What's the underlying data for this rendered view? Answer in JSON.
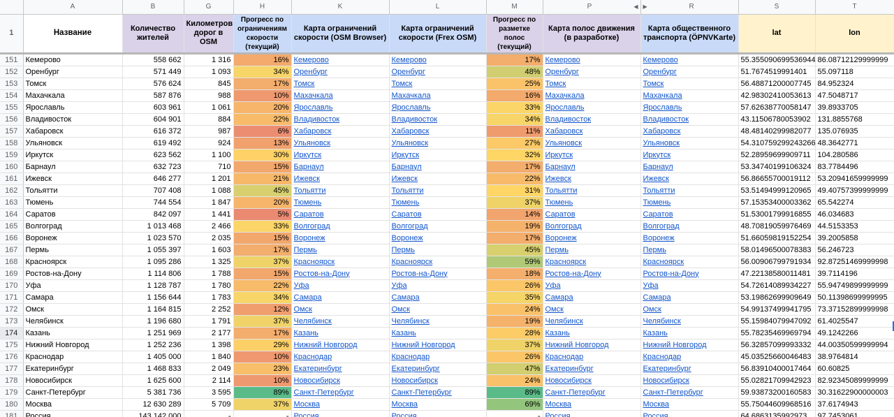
{
  "columns": {
    "letters": [
      "A",
      "B",
      "G",
      "H",
      "K",
      "L",
      "M",
      "P",
      "R",
      "S",
      "T"
    ],
    "header_row_number": "1",
    "headers": [
      "Название",
      "Количество жителей",
      "Километров дорог в OSM",
      "Прогресс по ограничениям скорости (текущий)",
      "Карта ограничений скорости (OSM Browser)",
      "Карта ограничений скорости (Frex OSM)",
      "Прогресс по разметке полос (текущий)",
      "Карта полос движения (в разработке)",
      "Карта общественного транспорта (ÖPNVKarte)",
      "lat",
      "lon"
    ]
  },
  "colors": {
    "header_purple": "#d9d2e9",
    "header_blue": "#c9daf8",
    "header_yellow": "#fff2cc",
    "link": "#1155cc"
  },
  "rows": [
    {
      "n": "151",
      "city": "Кемерово",
      "pop": "558 662",
      "km": "1 316",
      "sp": "16%",
      "lp": "17%",
      "lat": "55.355090699536944",
      "lon": "86.08712129999999"
    },
    {
      "n": "152",
      "city": "Оренбург",
      "pop": "571 449",
      "km": "1 093",
      "sp": "34%",
      "lp": "48%",
      "lat": "51.7674519991401",
      "lon": "55.097118"
    },
    {
      "n": "153",
      "city": "Томск",
      "pop": "576 624",
      "km": "845",
      "sp": "17%",
      "lp": "25%",
      "lat": "56.48871200007745",
      "lon": "84.952324"
    },
    {
      "n": "154",
      "city": "Махачкала",
      "pop": "587 876",
      "km": "988",
      "sp": "10%",
      "lp": "16%",
      "lat": "42.98302410053613",
      "lon": "47.5048717"
    },
    {
      "n": "155",
      "city": "Ярославль",
      "pop": "603 961",
      "km": "1 061",
      "sp": "20%",
      "lp": "33%",
      "lat": "57.62638770058147",
      "lon": "39.8933705"
    },
    {
      "n": "156",
      "city": "Владивосток",
      "pop": "604 901",
      "km": "884",
      "sp": "22%",
      "lp": "34%",
      "lat": "43.11506780053902",
      "lon": "131.8855768"
    },
    {
      "n": "157",
      "city": "Хабаровск",
      "pop": "616 372",
      "km": "987",
      "sp": "6%",
      "lp": "11%",
      "lat": "48.48140299982077",
      "lon": "135.076935"
    },
    {
      "n": "158",
      "city": "Ульяновск",
      "pop": "619 492",
      "km": "924",
      "sp": "13%",
      "lp": "27%",
      "lat": "54.310759299243266",
      "lon": "48.3642771"
    },
    {
      "n": "159",
      "city": "Иркутск",
      "pop": "623 562",
      "km": "1 100",
      "sp": "30%",
      "lp": "32%",
      "lat": "52.28959699909711",
      "lon": "104.280586"
    },
    {
      "n": "160",
      "city": "Барнаул",
      "pop": "632 723",
      "km": "710",
      "sp": "15%",
      "lp": "17%",
      "lat": "53.34740199106324",
      "lon": "83.7784496"
    },
    {
      "n": "161",
      "city": "Ижевск",
      "pop": "646 277",
      "km": "1 201",
      "sp": "21%",
      "lp": "22%",
      "lat": "56.86655700019112",
      "lon": "53.20941659999999"
    },
    {
      "n": "162",
      "city": "Тольятти",
      "pop": "707 408",
      "km": "1 088",
      "sp": "45%",
      "lp": "31%",
      "lat": "53.51494999120965",
      "lon": "49.40757399999999"
    },
    {
      "n": "163",
      "city": "Тюмень",
      "pop": "744 554",
      "km": "1 847",
      "sp": "20%",
      "lp": "37%",
      "lat": "57.15353400003362",
      "lon": "65.542274"
    },
    {
      "n": "164",
      "city": "Саратов",
      "pop": "842 097",
      "km": "1 441",
      "sp": "5%",
      "lp": "14%",
      "lat": "51.53001799916855",
      "lon": "46.034683"
    },
    {
      "n": "165",
      "city": "Волгоград",
      "pop": "1 013 468",
      "km": "2 466",
      "sp": "33%",
      "lp": "19%",
      "lat": "48.70819059976469",
      "lon": "44.5153353"
    },
    {
      "n": "166",
      "city": "Воронеж",
      "pop": "1 023 570",
      "km": "2 035",
      "sp": "15%",
      "lp": "17%",
      "lat": "51.66059819152254",
      "lon": "39.2005858"
    },
    {
      "n": "167",
      "city": "Пермь",
      "pop": "1 055 397",
      "km": "1 603",
      "sp": "17%",
      "lp": "45%",
      "lat": "58.01496500078383",
      "lon": "56.246723"
    },
    {
      "n": "168",
      "city": "Красноярск",
      "pop": "1 095 286",
      "km": "1 325",
      "sp": "37%",
      "lp": "59%",
      "lat": "56.00906799791934",
      "lon": "92.87251469999998"
    },
    {
      "n": "169",
      "city": "Ростов-на-Дону",
      "pop": "1 114 806",
      "km": "1 788",
      "sp": "15%",
      "lp": "18%",
      "lat": "47.22138580011481",
      "lon": "39.7114196"
    },
    {
      "n": "170",
      "city": "Уфа",
      "pop": "1 128 787",
      "km": "1 780",
      "sp": "22%",
      "lp": "26%",
      "lat": "54.72614089934227",
      "lon": "55.94749899999999"
    },
    {
      "n": "171",
      "city": "Самара",
      "pop": "1 156 644",
      "km": "1 783",
      "sp": "34%",
      "lp": "35%",
      "lat": "53.19862699909649",
      "lon": "50.11398699999995"
    },
    {
      "n": "172",
      "city": "Омск",
      "pop": "1 164 815",
      "km": "2 252",
      "sp": "12%",
      "lp": "24%",
      "lat": "54.99137499941795",
      "lon": "73.37152899999998"
    },
    {
      "n": "173",
      "city": "Челябинск",
      "pop": "1 196 680",
      "km": "1 791",
      "sp": "37%",
      "lp": "19%",
      "lat": "55.15984079947092",
      "lon": "61.4025547"
    },
    {
      "n": "174",
      "city": "Казань",
      "pop": "1 251 969",
      "km": "2 177",
      "sp": "17%",
      "lp": "28%",
      "lat": "55.78235469969794",
      "lon": "49.1242266"
    },
    {
      "n": "175",
      "city": "Нижний Новгород",
      "pop": "1 252 236",
      "km": "1 398",
      "sp": "29%",
      "lp": "37%",
      "lat": "56.32857099993332",
      "lon": "44.00350599999994"
    },
    {
      "n": "176",
      "city": "Краснодар",
      "pop": "1 405 000",
      "km": "1 840",
      "sp": "10%",
      "lp": "26%",
      "lat": "45.03525660046483",
      "lon": "38.9764814"
    },
    {
      "n": "177",
      "city": "Екатеринбург",
      "pop": "1 468 833",
      "km": "2 049",
      "sp": "23%",
      "lp": "47%",
      "lat": "56.83910400017464",
      "lon": "60.60825"
    },
    {
      "n": "178",
      "city": "Новосибирск",
      "pop": "1 625 600",
      "km": "2 114",
      "sp": "10%",
      "lp": "24%",
      "lat": "55.02821709942923",
      "lon": "82.92345089999999"
    },
    {
      "n": "179",
      "city": "Санкт-Петербург",
      "pop": "5 381 736",
      "km": "3 595",
      "sp": "89%",
      "lp": "89%",
      "lat": "59.93873200160583",
      "lon": "30.31622900000003"
    },
    {
      "n": "180",
      "city": "Москва",
      "pop": "12 630 289",
      "km": "5 709",
      "sp": "37%",
      "lp": "69%",
      "lat": "55.75044609968516",
      "lon": "37.6174943"
    },
    {
      "n": "181",
      "city": "Россия",
      "pop": "143 142 000",
      "km": "-",
      "sp": "-",
      "lp": "-",
      "lat": "64.6863135992973",
      "lon": "97.7453061"
    }
  ]
}
